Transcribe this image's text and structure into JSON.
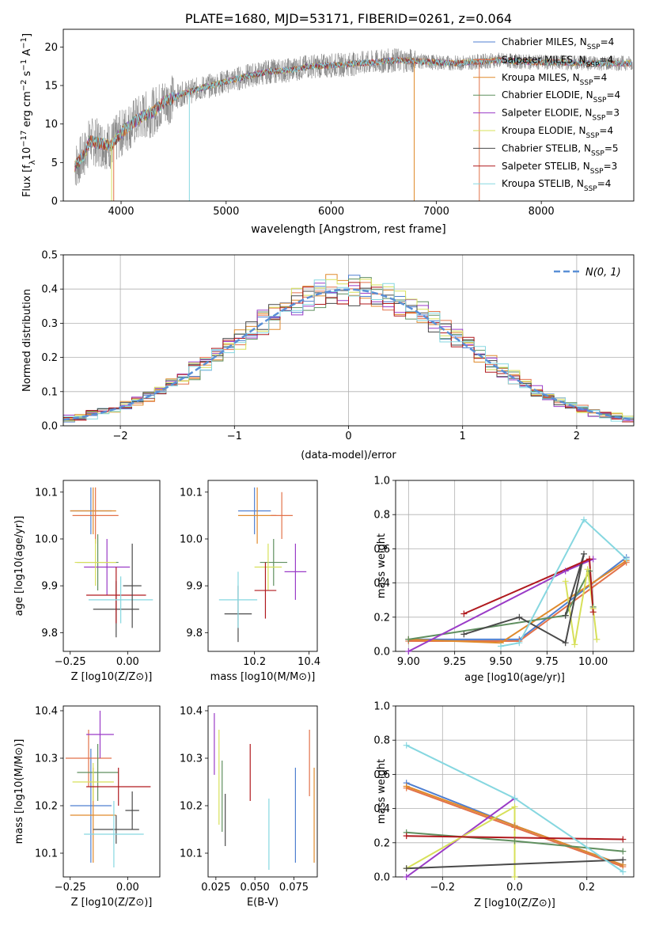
{
  "colors": {
    "chabrier_miles": "#4f7fd0",
    "salpeter_miles": "#e2724a",
    "kroupa_miles": "#e08a2c",
    "chabrier_elodie": "#5f8f5f",
    "salpeter_elodie": "#9a3bc7",
    "kroupa_elodie": "#d7e05a",
    "chabrier_stelib": "#4a4a4a",
    "salpeter_stelib": "#b0191e",
    "kroupa_stelib": "#86d7e0",
    "data_spectrum": "#808080",
    "normal_curve": "#5a8fd6",
    "grid": "#b0b0b0"
  },
  "legend_entries": [
    "Chabrier MILES, N",
    "Salpeter MILES, N",
    "Kroupa MILES, N",
    "Chabrier ELODIE, N",
    "Salpeter ELODIE, N",
    "Kroupa ELODIE, N",
    "Chabrier STELIB, N",
    "Salpeter STELIB, N",
    "Kroupa STELIB, N"
  ],
  "legend_sub": "SSP",
  "legend_nssp": [
    "=4",
    "=4",
    "=4",
    "=4",
    "=3",
    "=4",
    "=5",
    "=3",
    "=4"
  ],
  "chart_data": [
    {
      "type": "line",
      "title": "PLATE=1680, MJD=53171, FIBERID=0261, z=0.064",
      "xlabel": "wavelength [Angstrom, rest frame]",
      "ylabel_parts": [
        "Flux [f",
        "λ",
        "10",
        "−17",
        " erg cm",
        "−2",
        " s",
        "−1",
        " A",
        "−1",
        "]"
      ],
      "xlim": [
        3450,
        8880
      ],
      "ylim": [
        0,
        22.3
      ],
      "xticks": [
        4000,
        5000,
        6000,
        7000,
        8000
      ],
      "yticks": [
        0,
        5,
        10,
        15,
        20
      ],
      "grid": false,
      "legend_position": "upper right",
      "continuum_model": [
        [
          3560,
          4.5
        ],
        [
          3650,
          6.0
        ],
        [
          3700,
          7.8
        ],
        [
          3800,
          7.5
        ],
        [
          3900,
          7.2
        ],
        [
          4000,
          8.8
        ],
        [
          4100,
          10.0
        ],
        [
          4200,
          11.0
        ],
        [
          4300,
          11.5
        ],
        [
          4400,
          12.8
        ],
        [
          4600,
          14.0
        ],
        [
          4800,
          14.8
        ],
        [
          5000,
          15.5
        ],
        [
          5200,
          16.2
        ],
        [
          5400,
          16.8
        ],
        [
          5600,
          17.0
        ],
        [
          5800,
          17.5
        ],
        [
          6000,
          17.6
        ],
        [
          6200,
          17.8
        ],
        [
          6400,
          18.0
        ],
        [
          6600,
          18.3
        ],
        [
          6800,
          18.2
        ],
        [
          7000,
          18.0
        ],
        [
          7200,
          17.9
        ],
        [
          7400,
          18.1
        ],
        [
          7600,
          18.3
        ],
        [
          7800,
          18.1
        ],
        [
          8000,
          18.0
        ],
        [
          8200,
          18.0
        ],
        [
          8400,
          17.9
        ]
      ],
      "data_extent": [
        3560,
        8870
      ]
    },
    {
      "type": "histogram",
      "xlabel": "(data-model)/error",
      "ylabel": "Normed distribution",
      "xlim": [
        -2.5,
        2.5
      ],
      "ylim": [
        0,
        0.5
      ],
      "xticks": [
        -2,
        -1,
        0,
        1,
        2
      ],
      "yticks": [
        0.0,
        0.1,
        0.2,
        0.3,
        0.4,
        0.5
      ],
      "grid": true,
      "legend": [
        "$\\mathcal{N}(0,1)$"
      ],
      "legend_position": "upper right",
      "bin_width": 0.1,
      "normal_curve": {
        "mean": 0,
        "sigma": 1
      }
    },
    {
      "type": "errorbar",
      "xlabel": "Z [log10(Z/Z⊙)]",
      "ylabel": "age [log10(age/yr)]",
      "xlim": [
        -0.28,
        0.14
      ],
      "ylim": [
        9.76,
        10.125
      ],
      "xticks": [
        -0.25,
        0.0
      ],
      "yticks": [
        9.8,
        9.9,
        10.0,
        10.1
      ],
      "points": [
        {
          "x": -0.16,
          "y": 10.06,
          "xerr": 0.09,
          "yerr": 0.05,
          "c": "chabrier_miles"
        },
        {
          "x": -0.14,
          "y": 10.05,
          "xerr": 0.1,
          "yerr": 0.06,
          "c": "salpeter_miles"
        },
        {
          "x": -0.15,
          "y": 10.06,
          "xerr": 0.1,
          "yerr": 0.05,
          "c": "kroupa_miles"
        },
        {
          "x": -0.13,
          "y": 9.95,
          "xerr": 0.09,
          "yerr": 0.06,
          "c": "chabrier_elodie"
        },
        {
          "x": -0.09,
          "y": 9.94,
          "xerr": 0.1,
          "yerr": 0.06,
          "c": "salpeter_elodie"
        },
        {
          "x": -0.14,
          "y": 9.95,
          "xerr": 0.09,
          "yerr": 0.05,
          "c": "kroupa_elodie"
        },
        {
          "x": -0.05,
          "y": 9.85,
          "xerr": 0.1,
          "yerr": 0.06,
          "c": "chabrier_stelib"
        },
        {
          "x": -0.05,
          "y": 9.88,
          "xerr": 0.13,
          "yerr": 0.06,
          "c": "salpeter_stelib"
        },
        {
          "x": -0.03,
          "y": 9.87,
          "xerr": 0.14,
          "yerr": 0.05,
          "c": "kroupa_stelib"
        },
        {
          "x": 0.02,
          "y": 9.9,
          "xerr": 0.04,
          "yerr": 0.09,
          "c": "chabrier_stelib"
        }
      ]
    },
    {
      "type": "errorbar",
      "xlabel": "mass [log10(M/M⊙)]",
      "ylabel": "",
      "xlim": [
        10.03,
        10.43
      ],
      "ylim": [
        9.76,
        10.125
      ],
      "xticks": [
        10.2,
        10.4
      ],
      "yticks": [
        9.8,
        9.9,
        10.0,
        10.1
      ],
      "points": [
        {
          "x": 10.2,
          "y": 10.06,
          "xerr": 0.06,
          "yerr": 0.05,
          "c": "chabrier_miles"
        },
        {
          "x": 10.21,
          "y": 10.05,
          "xerr": 0.07,
          "yerr": 0.06,
          "c": "kroupa_miles"
        },
        {
          "x": 10.3,
          "y": 10.05,
          "xerr": 0.04,
          "yerr": 0.05,
          "c": "salpeter_miles"
        },
        {
          "x": 10.27,
          "y": 9.95,
          "xerr": 0.05,
          "yerr": 0.05,
          "c": "chabrier_elodie"
        },
        {
          "x": 10.35,
          "y": 9.93,
          "xerr": 0.04,
          "yerr": 0.06,
          "c": "salpeter_elodie"
        },
        {
          "x": 10.25,
          "y": 9.94,
          "xerr": 0.05,
          "yerr": 0.05,
          "c": "kroupa_elodie"
        },
        {
          "x": 10.14,
          "y": 9.84,
          "xerr": 0.05,
          "yerr": 0.06,
          "c": "chabrier_stelib"
        },
        {
          "x": 10.24,
          "y": 9.89,
          "xerr": 0.04,
          "yerr": 0.06,
          "c": "salpeter_stelib"
        },
        {
          "x": 10.14,
          "y": 9.87,
          "xerr": 0.07,
          "yerr": 0.06,
          "c": "kroupa_stelib"
        }
      ]
    },
    {
      "type": "line",
      "xlabel": "age [log10(age/yr)]",
      "ylabel": "mass weight",
      "xlim": [
        8.93,
        10.22
      ],
      "ylim": [
        0.0,
        1.0
      ],
      "xticks": [
        9.0,
        9.25,
        9.5,
        9.75,
        10.0
      ],
      "yticks": [
        0.0,
        0.2,
        0.4,
        0.6,
        0.8,
        1.0
      ],
      "grid": true,
      "series": [
        {
          "c": "chabrier_miles",
          "x": [
            9.0,
            9.6,
            10.18
          ],
          "y": [
            0.07,
            0.07,
            0.55
          ]
        },
        {
          "c": "salpeter_miles",
          "x": [
            9.0,
            9.6,
            10.18
          ],
          "y": [
            0.06,
            0.06,
            0.52
          ]
        },
        {
          "c": "kroupa_miles",
          "x": [
            9.0,
            9.5,
            10.18
          ],
          "y": [
            0.07,
            0.05,
            0.53
          ]
        },
        {
          "c": "chabrier_elodie",
          "x": [
            9.0,
            9.85,
            9.98,
            10.0
          ],
          "y": [
            0.07,
            0.21,
            0.47,
            0.26
          ]
        },
        {
          "c": "salpeter_elodie",
          "x": [
            9.0,
            9.85,
            10.0
          ],
          "y": [
            0.0,
            0.47,
            0.54
          ]
        },
        {
          "c": "kroupa_elodie",
          "x": [
            9.85,
            9.9,
            9.97,
            10.0,
            10.02
          ],
          "y": [
            0.41,
            0.04,
            0.48,
            0.25,
            0.07
          ]
        },
        {
          "c": "chabrier_stelib",
          "x": [
            9.3,
            9.6,
            9.85,
            9.95,
            9.85
          ],
          "y": [
            0.1,
            0.2,
            0.05,
            0.57,
            0.21
          ]
        },
        {
          "c": "salpeter_stelib",
          "x": [
            9.3,
            9.98,
            10.0
          ],
          "y": [
            0.22,
            0.54,
            0.23
          ]
        },
        {
          "c": "kroupa_stelib",
          "x": [
            9.5,
            9.6,
            9.95,
            10.18
          ],
          "y": [
            0.03,
            0.05,
            0.77,
            0.54
          ]
        }
      ]
    },
    {
      "type": "errorbar",
      "xlabel": "Z [log10(Z/Z⊙)]",
      "ylabel": "mass [log10(M/M⊙)]",
      "xlim": [
        -0.28,
        0.14
      ],
      "ylim": [
        10.05,
        10.41
      ],
      "xticks": [
        -0.25,
        0.0
      ],
      "yticks": [
        10.1,
        10.2,
        10.3,
        10.4
      ],
      "points": [
        {
          "x": -0.16,
          "y": 10.2,
          "xerr": 0.09,
          "yerr": 0.12,
          "c": "chabrier_miles"
        },
        {
          "x": -0.15,
          "y": 10.18,
          "xerr": 0.1,
          "yerr": 0.1,
          "c": "kroupa_miles"
        },
        {
          "x": -0.17,
          "y": 10.3,
          "xerr": 0.1,
          "yerr": 0.06,
          "c": "salpeter_miles"
        },
        {
          "x": -0.13,
          "y": 10.27,
          "xerr": 0.09,
          "yerr": 0.06,
          "c": "chabrier_elodie"
        },
        {
          "x": -0.12,
          "y": 10.35,
          "xerr": 0.06,
          "yerr": 0.05,
          "c": "salpeter_elodie"
        },
        {
          "x": -0.15,
          "y": 10.25,
          "xerr": 0.09,
          "yerr": 0.04,
          "c": "kroupa_elodie"
        },
        {
          "x": -0.05,
          "y": 10.15,
          "xerr": 0.1,
          "yerr": 0.03,
          "c": "chabrier_stelib"
        },
        {
          "x": -0.04,
          "y": 10.24,
          "xerr": 0.14,
          "yerr": 0.04,
          "c": "salpeter_stelib"
        },
        {
          "x": -0.06,
          "y": 10.14,
          "xerr": 0.13,
          "yerr": 0.07,
          "c": "kroupa_stelib"
        },
        {
          "x": 0.02,
          "y": 10.19,
          "xerr": 0.03,
          "yerr": 0.04,
          "c": "chabrier_stelib"
        }
      ]
    },
    {
      "type": "errorbar",
      "xlabel": "E(B-V)",
      "ylabel": "",
      "xlim": [
        0.02,
        0.09
      ],
      "ylim": [
        10.05,
        10.41
      ],
      "xticks": [
        0.025,
        0.05,
        0.075
      ],
      "yticks": [
        10.1,
        10.2,
        10.3,
        10.4
      ],
      "points": [
        {
          "x": 0.024,
          "y": 10.33,
          "yerr": 0.065,
          "c": "salpeter_elodie"
        },
        {
          "x": 0.027,
          "y": 10.26,
          "yerr": 0.1,
          "c": "kroupa_elodie"
        },
        {
          "x": 0.029,
          "y": 10.22,
          "yerr": 0.075,
          "c": "chabrier_elodie"
        },
        {
          "x": 0.031,
          "y": 10.17,
          "yerr": 0.055,
          "c": "chabrier_stelib"
        },
        {
          "x": 0.047,
          "y": 10.27,
          "yerr": 0.06,
          "c": "salpeter_stelib"
        },
        {
          "x": 0.059,
          "y": 10.14,
          "yerr": 0.075,
          "c": "kroupa_stelib"
        },
        {
          "x": 0.076,
          "y": 10.18,
          "yerr": 0.1,
          "c": "chabrier_miles"
        },
        {
          "x": 0.085,
          "y": 10.29,
          "yerr": 0.07,
          "c": "salpeter_miles"
        },
        {
          "x": 0.088,
          "y": 10.18,
          "yerr": 0.1,
          "c": "kroupa_miles"
        }
      ]
    },
    {
      "type": "line",
      "xlabel": "Z [log10(Z/Z⊙)]",
      "ylabel": "mass weight",
      "xlim": [
        -0.33,
        0.33
      ],
      "ylim": [
        0.0,
        1.0
      ],
      "xticks": [
        -0.2,
        0.0,
        0.2
      ],
      "yticks": [
        0.0,
        0.2,
        0.4,
        0.6,
        0.8,
        1.0
      ],
      "grid": true,
      "series": [
        {
          "c": "chabrier_miles",
          "x": [
            -0.3,
            0.0,
            0.3
          ],
          "y": [
            0.55,
            0.3,
            0.07
          ]
        },
        {
          "c": "salpeter_miles",
          "x": [
            -0.3,
            0.0,
            0.3
          ],
          "y": [
            0.52,
            0.29,
            0.06
          ]
        },
        {
          "c": "kroupa_miles",
          "x": [
            -0.3,
            0.0,
            0.3
          ],
          "y": [
            0.53,
            0.3,
            0.07
          ]
        },
        {
          "c": "chabrier_elodie",
          "x": [
            -0.3,
            0.0,
            0.3
          ],
          "y": [
            0.26,
            0.21,
            0.15
          ]
        },
        {
          "c": "salpeter_elodie",
          "x": [
            -0.3,
            0.0
          ],
          "y": [
            0.0,
            0.46
          ]
        },
        {
          "c": "kroupa_elodie",
          "x": [
            -0.3,
            0.0,
            0.0
          ],
          "y": [
            0.05,
            0.41,
            0.0
          ]
        },
        {
          "c": "chabrier_stelib",
          "x": [
            -0.3,
            0.3
          ],
          "y": [
            0.05,
            0.1
          ]
        },
        {
          "c": "salpeter_stelib",
          "x": [
            -0.3,
            0.3
          ],
          "y": [
            0.24,
            0.22
          ]
        },
        {
          "c": "kroupa_stelib",
          "x": [
            -0.3,
            0.0,
            0.3
          ],
          "y": [
            0.77,
            0.46,
            0.03
          ]
        }
      ]
    }
  ]
}
